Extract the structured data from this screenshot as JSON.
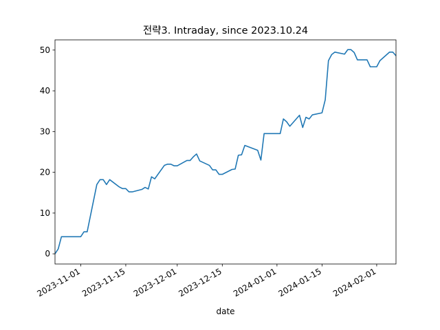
{
  "chart_data": {
    "type": "line",
    "title": "전략3. Intraday, since 2023.10.24",
    "xlabel": "date",
    "ylabel": "",
    "xlim": [
      "2023-10-24",
      "2024-02-07"
    ],
    "ylim": [
      -2.5,
      52.5
    ],
    "grid": false,
    "line_color": "#1f77b4",
    "x_ticks": [
      "2023-11-01",
      "2023-11-15",
      "2023-12-01",
      "2023-12-15",
      "2024-01-01",
      "2024-01-15",
      "2024-02-01"
    ],
    "y_ticks": [
      0,
      10,
      20,
      30,
      40,
      50
    ],
    "series": [
      {
        "x": [
          "2023-10-24",
          "2023-10-25",
          "2023-10-26",
          "2023-10-27",
          "2023-10-30",
          "2023-10-31",
          "2023-11-01",
          "2023-11-02",
          "2023-11-03",
          "2023-11-06",
          "2023-11-07",
          "2023-11-08",
          "2023-11-09",
          "2023-11-10",
          "2023-11-13",
          "2023-11-14",
          "2023-11-15",
          "2023-11-16",
          "2023-11-17",
          "2023-11-20",
          "2023-11-21",
          "2023-11-22",
          "2023-11-23",
          "2023-11-24",
          "2023-11-27",
          "2023-11-28",
          "2023-11-29",
          "2023-11-30",
          "2023-12-01",
          "2023-12-04",
          "2023-12-05",
          "2023-12-06",
          "2023-12-07",
          "2023-12-08",
          "2023-12-11",
          "2023-12-12",
          "2023-12-13",
          "2023-12-14",
          "2023-12-15",
          "2023-12-18",
          "2023-12-19",
          "2023-12-20",
          "2023-12-21",
          "2023-12-22",
          "2023-12-26",
          "2023-12-27",
          "2023-12-28",
          "2024-01-02",
          "2024-01-03",
          "2024-01-04",
          "2024-01-05",
          "2024-01-08",
          "2024-01-09",
          "2024-01-10",
          "2024-01-11",
          "2024-01-12",
          "2024-01-15",
          "2024-01-16",
          "2024-01-17",
          "2024-01-18",
          "2024-01-19",
          "2024-01-22",
          "2024-01-23",
          "2024-01-24",
          "2024-01-25",
          "2024-01-26",
          "2024-01-29",
          "2024-01-30",
          "2024-01-31",
          "2024-02-01",
          "2024-02-02",
          "2024-02-05",
          "2024-02-06",
          "2024-02-07"
        ],
        "y": [
          0,
          1.2,
          4.2,
          4.2,
          4.2,
          4.2,
          4.2,
          5.4,
          5.4,
          17.0,
          18.2,
          18.2,
          17.0,
          18.2,
          16.4,
          16.0,
          16.0,
          15.2,
          15.2,
          15.8,
          16.3,
          15.9,
          18.9,
          18.4,
          21.7,
          22.0,
          22.0,
          21.6,
          21.6,
          22.9,
          22.9,
          23.8,
          24.5,
          22.8,
          21.7,
          20.6,
          20.6,
          19.5,
          19.5,
          20.7,
          20.8,
          24.2,
          24.3,
          26.6,
          25.4,
          23.0,
          29.5,
          29.5,
          33.1,
          32.4,
          31.3,
          34.0,
          31.0,
          33.5,
          33.1,
          34.1,
          34.6,
          37.8,
          47.4,
          48.9,
          49.5,
          49.0,
          50.1,
          50.1,
          49.4,
          47.6,
          47.6,
          45.9,
          45.9,
          45.9,
          47.4,
          49.5,
          49.5,
          48.6
        ]
      }
    ]
  }
}
